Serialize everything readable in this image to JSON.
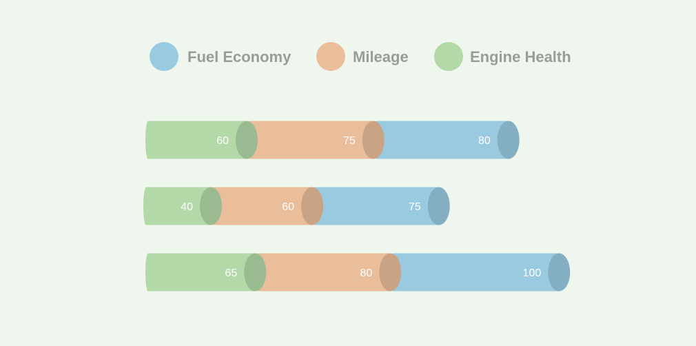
{
  "colors": {
    "background": "#eff6ee",
    "Fuel Economy": "#9acae0",
    "Mileage": "#ebbe9b",
    "Engine Health": "#b3d9a9"
  },
  "chart_data": {
    "type": "bar",
    "orientation": "horizontal",
    "stacked": true,
    "style": "3d-cylinder",
    "title": "",
    "xlabel": "",
    "ylabel": "",
    "grid": false,
    "legend_position": "top",
    "legend": [
      "Fuel Economy",
      "Mileage",
      "Engine Health"
    ],
    "categories": [
      "",
      "",
      ""
    ],
    "series": [
      {
        "name": "Engine Health",
        "values": [
          60,
          40,
          65
        ]
      },
      {
        "name": "Mileage",
        "values": [
          75,
          60,
          80
        ]
      },
      {
        "name": "Fuel Economy",
        "values": [
          80,
          75,
          100
        ]
      }
    ],
    "xlim": [
      0,
      245
    ]
  }
}
